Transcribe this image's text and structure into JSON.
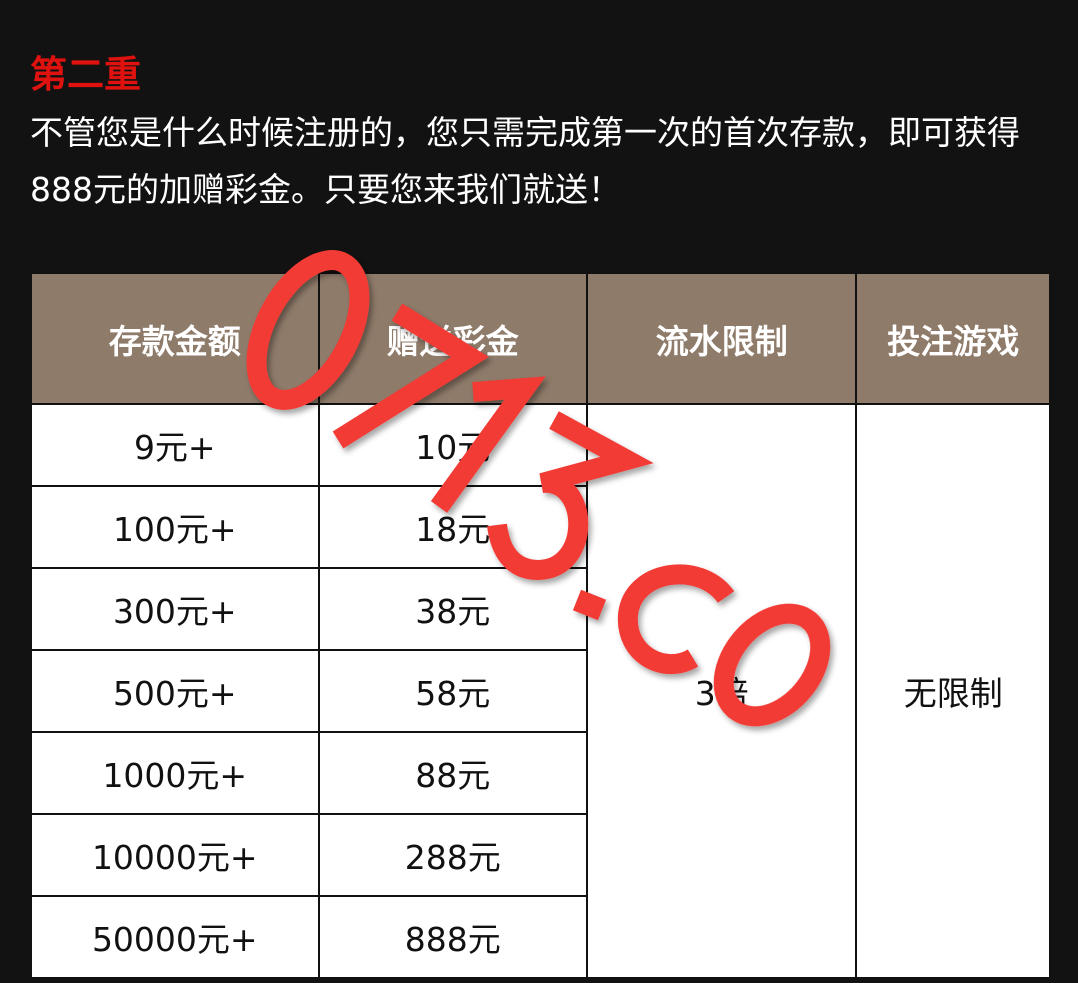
{
  "title": "第二重",
  "description": "不管您是什么时候注册的，您只需完成第一次的首次存款，即可获得888元的加赠彩金。只要您来我们就送！",
  "table": {
    "headers": [
      "存款金额",
      "赠送彩金",
      "流水限制",
      "投注游戏"
    ],
    "rows": [
      {
        "deposit": "9元+",
        "bonus": "10元"
      },
      {
        "deposit": "100元+",
        "bonus": "18元"
      },
      {
        "deposit": "300元+",
        "bonus": "38元"
      },
      {
        "deposit": "500元+",
        "bonus": "58元"
      },
      {
        "deposit": "1000元+",
        "bonus": "88元"
      },
      {
        "deposit": "10000元+",
        "bonus": "288元"
      },
      {
        "deposit": "50000元+",
        "bonus": "888元"
      }
    ],
    "turnover": "3倍",
    "games": "无限制"
  },
  "watermark": "0713.co",
  "colors": {
    "title": "#e0120f",
    "header_bg": "#8f7b6a",
    "watermark": "#f23a35",
    "background": "#121212"
  }
}
